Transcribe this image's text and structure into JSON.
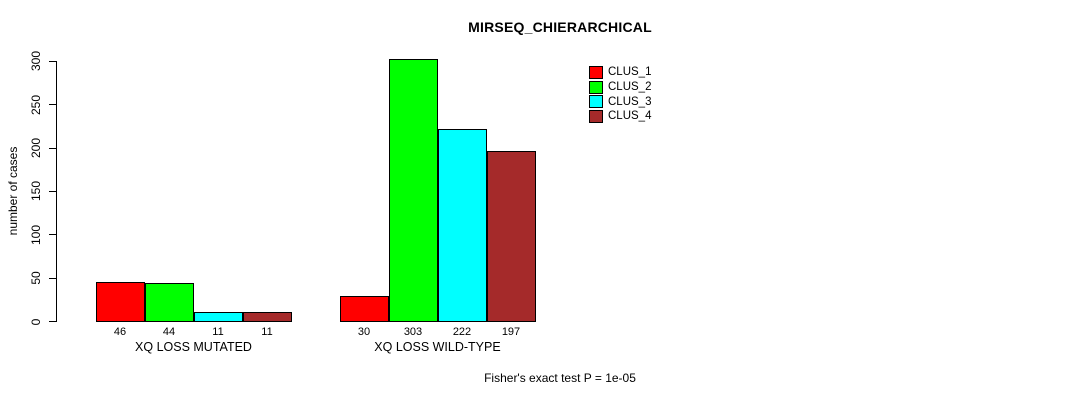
{
  "chart_data": {
    "type": "bar",
    "title": "MIRSEQ_CHIERARCHICAL",
    "ylabel": "number of cases",
    "xlabel": "",
    "categories": [
      "XQ LOSS MUTATED",
      "XQ LOSS WILD-TYPE"
    ],
    "series": [
      {
        "name": "CLUS_1",
        "color": "#FF0000",
        "values": [
          46,
          30
        ]
      },
      {
        "name": "CLUS_2",
        "color": "#00FF00",
        "values": [
          44,
          303
        ]
      },
      {
        "name": "CLUS_3",
        "color": "#00FFFF",
        "values": [
          11,
          222
        ]
      },
      {
        "name": "CLUS_4",
        "color": "#A52A2A",
        "values": [
          11,
          197
        ]
      }
    ],
    "ylim": [
      0,
      300
    ],
    "yticks": [
      0,
      50,
      100,
      150,
      200,
      250,
      300
    ],
    "grid": false,
    "bar_value_labels_shown": true,
    "legend_position": "top-right-inside",
    "footnote": "Fisher's exact test P = 1e-05"
  }
}
